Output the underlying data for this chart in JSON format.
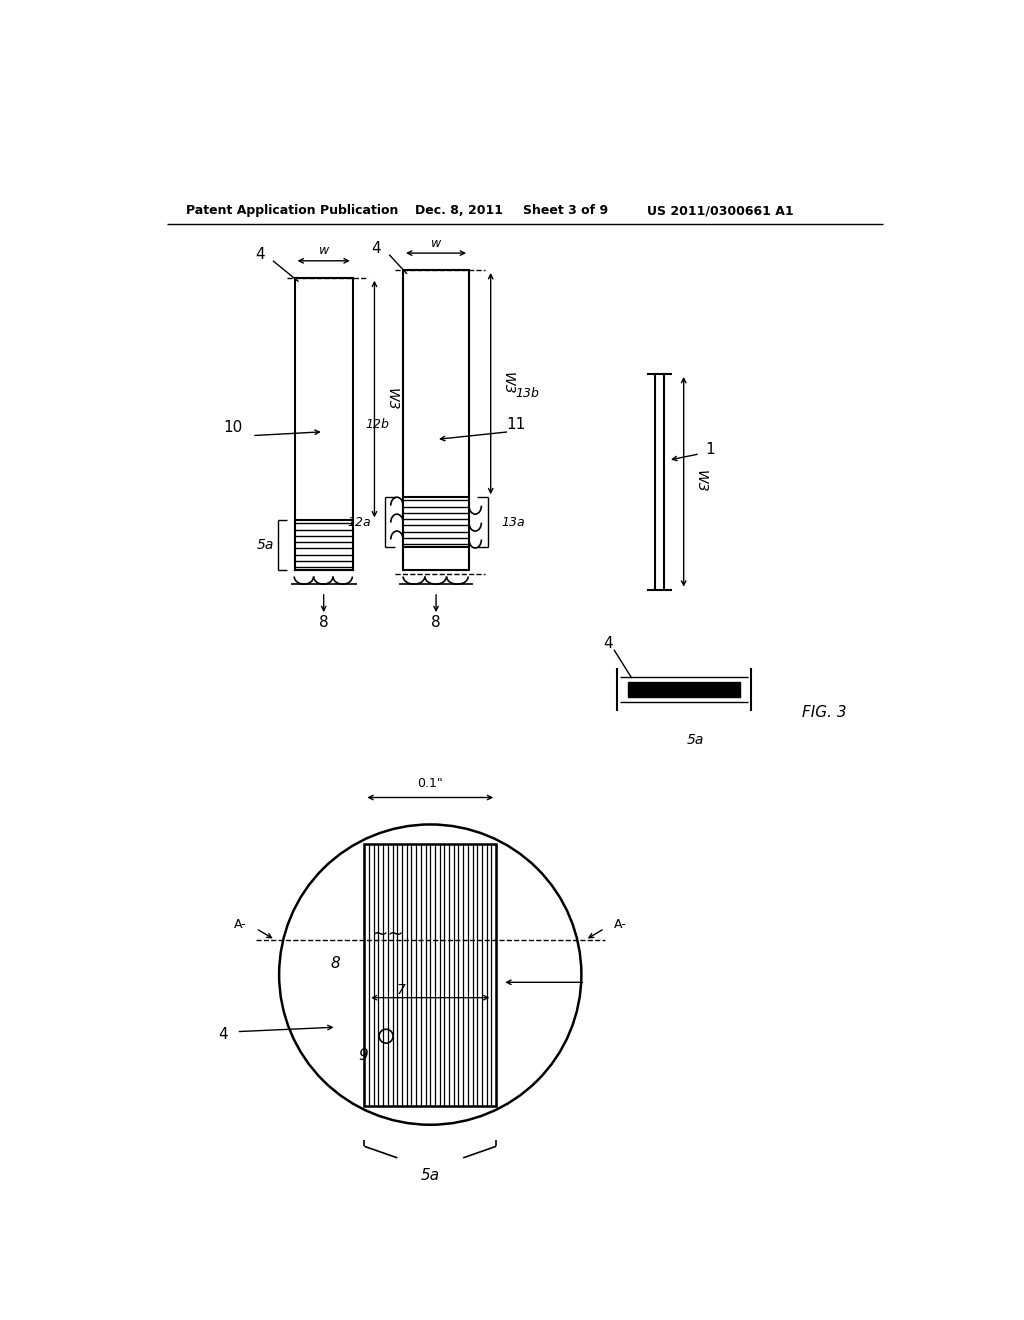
{
  "bg_color": "#ffffff",
  "header_text": "Patent Application Publication",
  "header_date": "Dec. 8, 2011",
  "header_sheet": "Sheet 3 of 9",
  "header_patent": "US 2011/0300661 A1",
  "fig_label": "FIG. 3"
}
